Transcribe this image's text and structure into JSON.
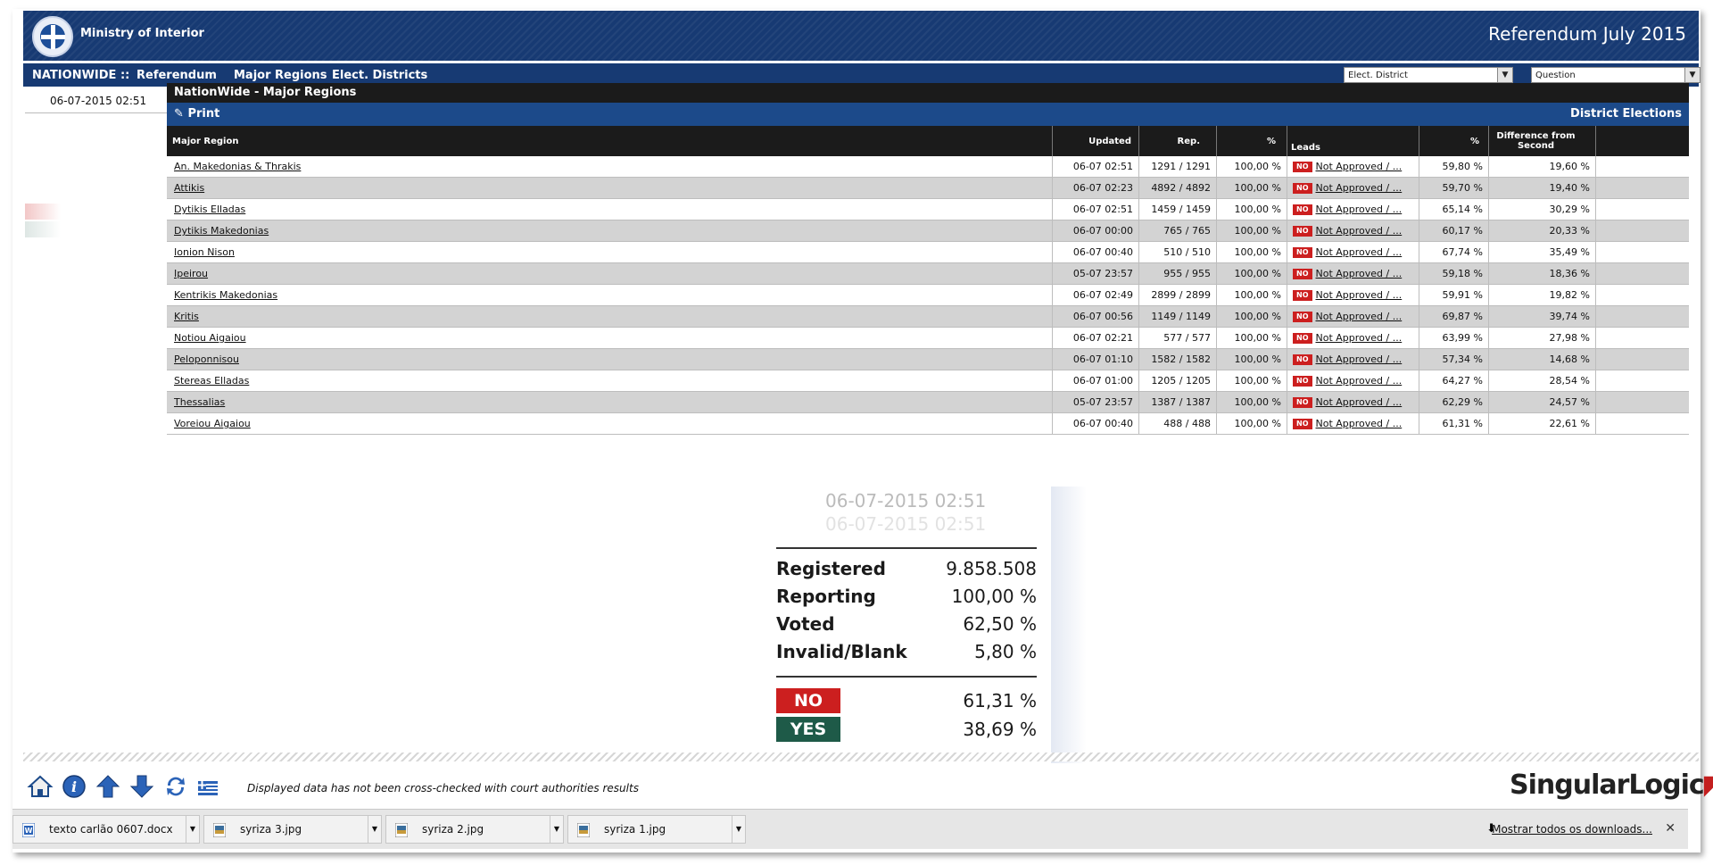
{
  "header": {
    "ministry": "Ministry of Interior",
    "title": "Referendum July 2015"
  },
  "nav": {
    "nationwide": "NATIONWIDE ::",
    "items": [
      "Referendum",
      "Major Regions",
      "Elect. Districts"
    ],
    "district_select": "Elect. District",
    "question_select": "Question"
  },
  "left": {
    "date": "06-07-2015 02:51"
  },
  "panel": {
    "title": "NationWide - Major Regions",
    "print": "Print",
    "district_elections": "District Elections",
    "headers": {
      "region": "Major Region",
      "updated": "Updated",
      "rep": "Rep.",
      "pct": "%",
      "leads": "Leads",
      "pct2": "%",
      "diff": "Difference from Second"
    },
    "rows": [
      {
        "region": "An. Makedonias & Thrakis",
        "updated": "06-07 02:51",
        "rep": "1291 / 1291",
        "pct": "100,00 %",
        "badge": "NO",
        "lead": "Not Approved / ...",
        "lead_pct": "59,80 %",
        "diff": "19,60 %"
      },
      {
        "region": "Attikis",
        "updated": "06-07 02:23",
        "rep": "4892 / 4892",
        "pct": "100,00 %",
        "badge": "NO",
        "lead": "Not Approved / ...",
        "lead_pct": "59,70 %",
        "diff": "19,40 %"
      },
      {
        "region": "Dytikis Elladas",
        "updated": "06-07 02:51",
        "rep": "1459 / 1459",
        "pct": "100,00 %",
        "badge": "NO",
        "lead": "Not Approved / ...",
        "lead_pct": "65,14 %",
        "diff": "30,29 %"
      },
      {
        "region": "Dytikis Makedonias",
        "updated": "06-07 00:00",
        "rep": "765 / 765",
        "pct": "100,00 %",
        "badge": "NO",
        "lead": "Not Approved / ...",
        "lead_pct": "60,17 %",
        "diff": "20,33 %"
      },
      {
        "region": "Ionion Nison",
        "updated": "06-07 00:40",
        "rep": "510 / 510",
        "pct": "100,00 %",
        "badge": "NO",
        "lead": "Not Approved / ...",
        "lead_pct": "67,74 %",
        "diff": "35,49 %"
      },
      {
        "region": "Ipeirou",
        "updated": "05-07 23:57",
        "rep": "955 / 955",
        "pct": "100,00 %",
        "badge": "NO",
        "lead": "Not Approved / ...",
        "lead_pct": "59,18 %",
        "diff": "18,36 %"
      },
      {
        "region": "Kentrikis Makedonias",
        "updated": "06-07 02:49",
        "rep": "2899 / 2899",
        "pct": "100,00 %",
        "badge": "NO",
        "lead": "Not Approved / ...",
        "lead_pct": "59,91 %",
        "diff": "19,82 %"
      },
      {
        "region": "Kritis",
        "updated": "06-07 00:56",
        "rep": "1149 / 1149",
        "pct": "100,00 %",
        "badge": "NO",
        "lead": "Not Approved / ...",
        "lead_pct": "69,87 %",
        "diff": "39,74 %"
      },
      {
        "region": "Notiou Aigaiou",
        "updated": "06-07 02:21",
        "rep": "577 / 577",
        "pct": "100,00 %",
        "badge": "NO",
        "lead": "Not Approved / ...",
        "lead_pct": "63,99 %",
        "diff": "27,98 %"
      },
      {
        "region": "Peloponnisou",
        "updated": "06-07 01:10",
        "rep": "1582 / 1582",
        "pct": "100,00 %",
        "badge": "NO",
        "lead": "Not Approved / ...",
        "lead_pct": "57,34 %",
        "diff": "14,68 %"
      },
      {
        "region": "Stereas Elladas",
        "updated": "06-07 01:00",
        "rep": "1205 / 1205",
        "pct": "100,00 %",
        "badge": "NO",
        "lead": "Not Approved / ...",
        "lead_pct": "64,27 %",
        "diff": "28,54 %"
      },
      {
        "region": "Thessalias",
        "updated": "05-07 23:57",
        "rep": "1387 / 1387",
        "pct": "100,00 %",
        "badge": "NO",
        "lead": "Not Approved / ...",
        "lead_pct": "62,29 %",
        "diff": "24,57 %"
      },
      {
        "region": "Voreiou Aigaiou",
        "updated": "06-07 00:40",
        "rep": "488 / 488",
        "pct": "100,00 %",
        "badge": "NO",
        "lead": "Not Approved / ...",
        "lead_pct": "61,31 %",
        "diff": "22,61 %"
      }
    ]
  },
  "summary": {
    "date": "06-07-2015 02:51",
    "stats": [
      {
        "label": "Registered",
        "value": "9.858.508"
      },
      {
        "label": "Reporting",
        "value": "100,00 %"
      },
      {
        "label": "Voted",
        "value": "62,50 %"
      },
      {
        "label": "Invalid/Blank",
        "value": "5,80 %"
      }
    ],
    "votes": [
      {
        "label": "NO",
        "value": "61,31 %",
        "color": "#cc1f1f"
      },
      {
        "label": "YES",
        "value": "38,69 %",
        "color": "#1e5a48"
      }
    ]
  },
  "footer": {
    "disclaimer": "Displayed data has not been cross-checked with court authorities results",
    "logo_a": "Singular",
    "logo_b": "Logic"
  },
  "downloads": {
    "items": [
      "texto carlão 0607.docx",
      "syriza 3.jpg",
      "syriza 2.jpg",
      "syriza 1.jpg"
    ],
    "show_all": "Mostrar todos os downloads...",
    "close": "✕"
  }
}
